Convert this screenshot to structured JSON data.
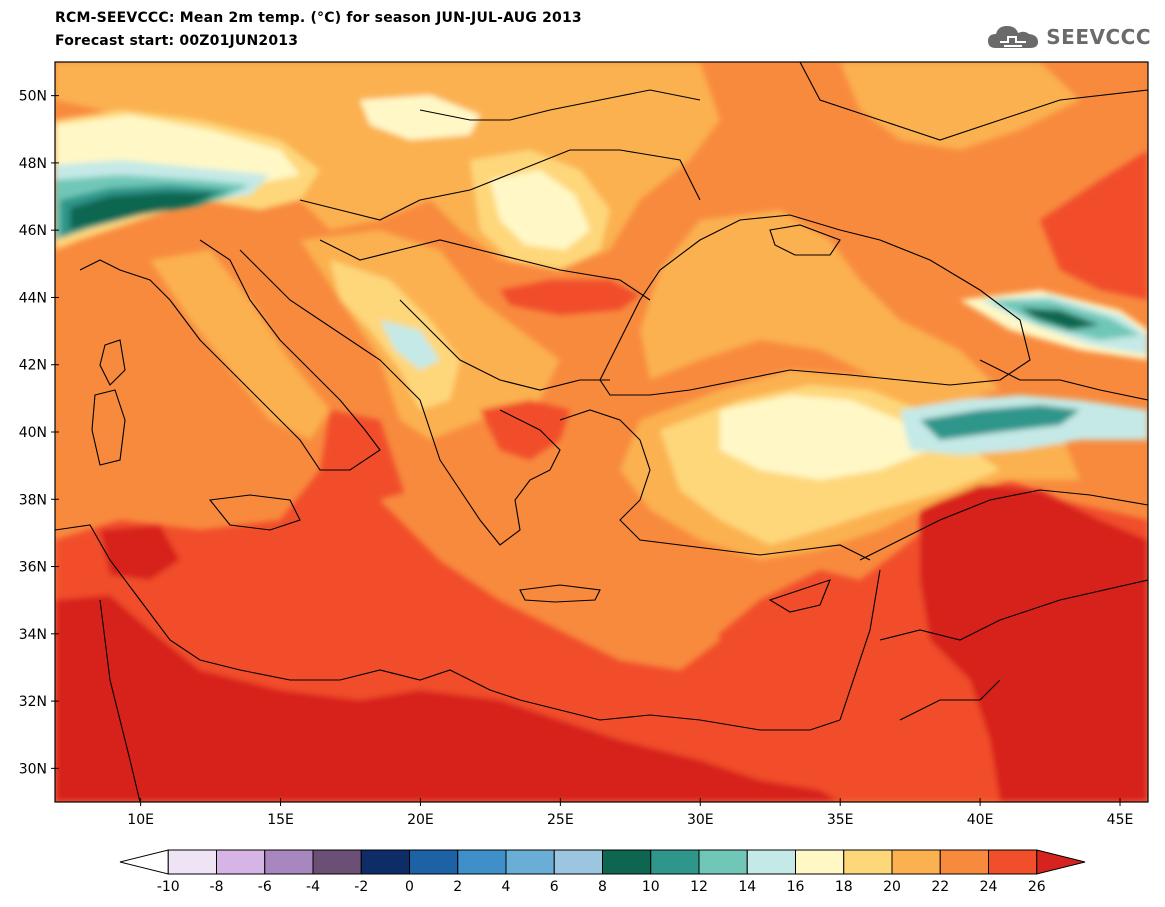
{
  "title": {
    "line1": "RCM-SEEVCCC: Mean 2m temp. (°C) for season JUN-JUL-AUG 2013",
    "line2": "Forecast start: 00Z01JUN2013"
  },
  "logo": {
    "text": "SEEVCCC",
    "icon": "cloud-icon"
  },
  "map": {
    "lat_labels": [
      "50N",
      "48N",
      "46N",
      "44N",
      "42N",
      "40N",
      "38N",
      "36N",
      "34N",
      "32N",
      "30N"
    ],
    "lon_labels": [
      "10E",
      "15E",
      "20E",
      "25E",
      "30E",
      "35E",
      "40E",
      "45E"
    ],
    "lat_values": [
      50,
      48,
      46,
      44,
      42,
      40,
      38,
      36,
      34,
      32,
      30
    ],
    "lon_values": [
      10,
      15,
      20,
      25,
      30,
      35,
      40,
      45
    ]
  },
  "colorbar": {
    "tick_labels": [
      "-10",
      "-8",
      "-6",
      "-4",
      "-2",
      "0",
      "2",
      "4",
      "6",
      "8",
      "10",
      "12",
      "14",
      "16",
      "18",
      "20",
      "22",
      "24",
      "26"
    ],
    "colors": [
      "#ffffff",
      "#efe4f6",
      "#d6b4e6",
      "#a886bf",
      "#6b4f75",
      "#0e2d66",
      "#1c62a4",
      "#3f8fc8",
      "#6aaed8",
      "#9cc6e0",
      "#0f6650",
      "#2f968b",
      "#70c7b8",
      "#c4e9e6",
      "#fff8c6",
      "#fed77a",
      "#fbb150",
      "#f88a3e",
      "#f14e2b",
      "#d7231f"
    ]
  },
  "colors": {
    "c10": "#0f6650",
    "c12": "#2f968b",
    "c14": "#70c7b8",
    "c16": "#c4e9e6",
    "c18": "#fff8c6",
    "c20": "#fed77a",
    "c22": "#fbb150",
    "c24": "#f88a3e",
    "c26": "#f14e2b",
    "c28": "#d7231f",
    "border": "#000000"
  }
}
